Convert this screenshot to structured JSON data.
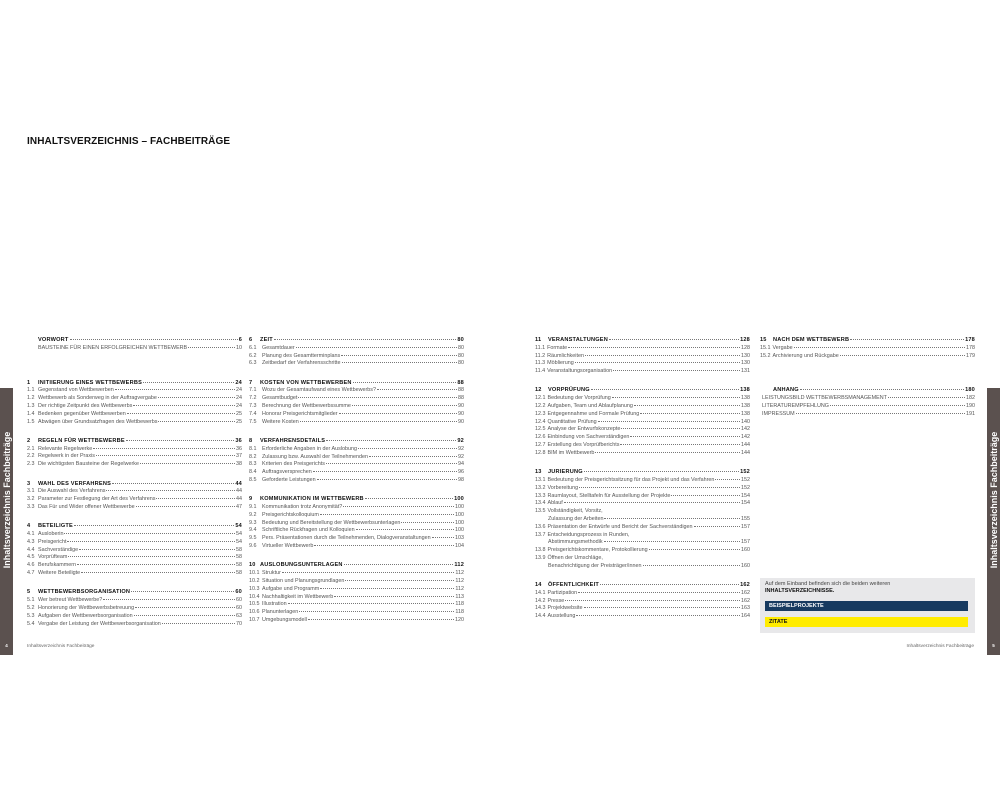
{
  "title": "INHALTSVERZEICHNIS – FACHBEITRÄGE",
  "side_tab_label": "Inhaltsverzeichnis Fachbeiträge",
  "footer_label": "Inhaltsverzeichnis Fachbeiträge",
  "page_numbers": {
    "left": "4",
    "right": "5"
  },
  "colors": {
    "tab": "#5b514f",
    "navy": "#173a60",
    "yellow": "#ffec00",
    "box": "#e8e8ea"
  },
  "columns": [
    [
      {
        "head": {
          "num": "",
          "title": "VORWORT",
          "page": "6"
        },
        "items": [
          {
            "num": "",
            "title": "BAUSTEINE FÜR EINEN ERFOLGREICHEN WETTBEWERB",
            "page": "10"
          }
        ]
      },
      {
        "head": {
          "num": "1",
          "title": "INITIIERUNG EINES WETTBEWERBS",
          "page": "24"
        },
        "items": [
          {
            "num": "1.1",
            "title": "Gegenstand von Wettbewerben",
            "page": "24"
          },
          {
            "num": "1.2",
            "title": "Wettbewerb als Sonderweg in der Auftragvergabe",
            "page": "24"
          },
          {
            "num": "1.3",
            "title": "Der richtige Zeitpunkt des Wettbewerbs",
            "page": "24"
          },
          {
            "num": "1.4",
            "title": "Bedenken gegenüber Wettbewerben",
            "page": "25"
          },
          {
            "num": "1.5",
            "title": "Abwägen über Grundsatzfragen des Wettbewerbs",
            "page": "25"
          }
        ]
      },
      {
        "head": {
          "num": "2",
          "title": "REGELN FÜR WETTBEWERBE",
          "page": "36"
        },
        "items": [
          {
            "num": "2.1",
            "title": "Relevante Regelwerke",
            "page": "36"
          },
          {
            "num": "2.2",
            "title": "Regelwerk in der Praxis",
            "page": "37"
          },
          {
            "num": "2.3",
            "title": "Die wichtigsten Bausteine der Regelwerke",
            "page": "38"
          }
        ]
      },
      {
        "head": {
          "num": "3",
          "title": "WAHL DES VERFAHRENS",
          "page": "44"
        },
        "items": [
          {
            "num": "3.1",
            "title": "Die Auswahl des Verfahrens",
            "page": "44"
          },
          {
            "num": "3.2",
            "title": "Parameter zur Festlegung der Art des Verfahrens",
            "page": "44"
          },
          {
            "num": "3.3",
            "title": "Das Für und Wider offener Wettbewerbe",
            "page": "47"
          }
        ]
      },
      {
        "head": {
          "num": "4",
          "title": "BETEILIGTE",
          "page": "54"
        },
        "items": [
          {
            "num": "4.1",
            "title": "Ausloberin",
            "page": "54"
          },
          {
            "num": "4.3",
            "title": "Preisgericht",
            "page": "54"
          },
          {
            "num": "4.4",
            "title": "Sachverständige",
            "page": "58"
          },
          {
            "num": "4.5",
            "title": "Vorprüfteam",
            "page": "58"
          },
          {
            "num": "4.6",
            "title": "Berufskammern",
            "page": "58"
          },
          {
            "num": "4.7",
            "title": "Weitere Beteiligte",
            "page": "58"
          }
        ]
      },
      {
        "head": {
          "num": "5",
          "title": "WETTBEWERBSORGANISATION",
          "page": "60"
        },
        "items": [
          {
            "num": "5.1",
            "title": "Wer betreut Wettbewerbe?",
            "page": "60"
          },
          {
            "num": "5.2",
            "title": "Honorierung der Wettbewerbsbetreuung",
            "page": "60"
          },
          {
            "num": "5.3",
            "title": "Aufgaben der Wettbewerbsorganisation",
            "page": "63"
          },
          {
            "num": "5.4",
            "title": "Vergabe der Leistung der Wettbewerbsorganisation",
            "page": "70"
          }
        ]
      }
    ],
    [
      {
        "head": {
          "num": "6",
          "title": "ZEIT",
          "page": "80"
        },
        "items": [
          {
            "num": "6.1",
            "title": "Gesamtdauer",
            "page": "80"
          },
          {
            "num": "6.2",
            "title": "Planung des Gesamtterminplans",
            "page": "80"
          },
          {
            "num": "6.3",
            "title": "Zeitbedarf der Verfahrensschritte",
            "page": "80"
          }
        ]
      },
      {
        "head": {
          "num": "7",
          "title": "KOSTEN VON WETTBEWERBEN",
          "page": "88"
        },
        "items": [
          {
            "num": "7.1",
            "title": "Wozu der Gesamtaufwand eines Wettbewerbs?",
            "page": "88"
          },
          {
            "num": "7.2",
            "title": "Gesamtbudget",
            "page": "88"
          },
          {
            "num": "7.3",
            "title": "Berechnung der Wettbewerbssumme",
            "page": "90"
          },
          {
            "num": "7.4",
            "title": "Honorar Preisgerichtsmitglieder",
            "page": "90"
          },
          {
            "num": "7.5",
            "title": "Weitere Kosten",
            "page": "90"
          }
        ]
      },
      {
        "head": {
          "num": "8",
          "title": "VERFAHRENSDETAILS",
          "page": "92"
        },
        "items": [
          {
            "num": "8.1",
            "title": "Erforderliche Angaben in der Auslobung",
            "page": "92"
          },
          {
            "num": "8.2",
            "title": "Zulassung bzw. Auswahl der Teilnehmenden",
            "page": "92"
          },
          {
            "num": "8.3",
            "title": "Kriterien des Preisgerichts",
            "page": "94"
          },
          {
            "num": "8.4",
            "title": "Auftragsversprechen",
            "page": "96"
          },
          {
            "num": "8.5",
            "title": "Geforderte Leistungen",
            "page": "98"
          }
        ]
      },
      {
        "head": {
          "num": "9",
          "title": "KOMMUNIKATION IM WETTBEWERB",
          "page": "100"
        },
        "items": [
          {
            "num": "9.1",
            "title": "Kommunikation trotz Anonymität?",
            "page": "100"
          },
          {
            "num": "9.2",
            "title": "Preisgerichtskolloquium",
            "page": "100"
          },
          {
            "num": "9.3",
            "title": "Bedeutung und Bereitstellung der Wettbewerbsunterlagen",
            "page": "100"
          },
          {
            "num": "9.4",
            "title": "Schriftliche Rückfragen und Kolloquien",
            "page": "100"
          },
          {
            "num": "9.5",
            "title": "Pers. Präsentationen durch die Teilnehmenden, Dialogveranstaltungen",
            "page": "103"
          },
          {
            "num": "9.6",
            "title": "Virtueller Wettbewerb",
            "page": "104"
          }
        ]
      },
      {
        "head": {
          "num": "10",
          "title": "AUSLOBUNGSUNTERLAGEN",
          "page": "112"
        },
        "items": [
          {
            "num": "10.1",
            "title": "Struktur",
            "page": "112"
          },
          {
            "num": "10.2",
            "title": "Situation und Planungsgrundlagen",
            "page": "112"
          },
          {
            "num": "10.3",
            "title": "Aufgabe und Programm",
            "page": "112"
          },
          {
            "num": "10.4",
            "title": "Nachhaltigkeit im Wettbewerb",
            "page": "113"
          },
          {
            "num": "10.5",
            "title": "Illustration",
            "page": "118"
          },
          {
            "num": "10.6",
            "title": "Planunterlagen",
            "page": "118"
          },
          {
            "num": "10.7",
            "title": "Umgebungsmodell",
            "page": "120"
          }
        ]
      }
    ],
    [
      {
        "head": {
          "num": "11",
          "title": "VERANSTALTUNGEN",
          "page": "128"
        },
        "items": [
          {
            "num": "11.1",
            "title": "Formate",
            "page": "128"
          },
          {
            "num": "11.2",
            "title": "Räumlichkeiten",
            "page": "130"
          },
          {
            "num": "11.3",
            "title": "Möblierung",
            "page": "130"
          },
          {
            "num": "11.4",
            "title": "Veranstaltungsorganisation",
            "page": "131"
          }
        ]
      },
      {
        "head": {
          "num": "12",
          "title": "VORPRÜFUNG",
          "page": "138"
        },
        "items": [
          {
            "num": "12.1",
            "title": "Bedeutung der Vorprüfung",
            "page": "138"
          },
          {
            "num": "12.2",
            "title": "Aufgaben, Team und Ablaufplanung",
            "page": "138"
          },
          {
            "num": "12.3",
            "title": "Entgegennahme und Formale Prüfung",
            "page": "138"
          },
          {
            "num": "12.4",
            "title": "Quantitative Prüfung",
            "page": "140"
          },
          {
            "num": "12.5",
            "title": "Analyse der Entwurfskonzepte",
            "page": "142"
          },
          {
            "num": "12.6",
            "title": "Einbindung von Sachverständigen",
            "page": "142"
          },
          {
            "num": "12.7",
            "title": "Erstellung des Vorprüfberichts",
            "page": "144"
          },
          {
            "num": "12.8",
            "title": "BIM im Wettbewerb",
            "page": "144"
          }
        ]
      },
      {
        "head": {
          "num": "13",
          "title": "JURIERUNG",
          "page": "152"
        },
        "items": [
          {
            "num": "13.1",
            "title": "Bedeutung der Preisgerichtssitzung für das Projekt und das Verfahren",
            "page": "152"
          },
          {
            "num": "13.2",
            "title": "Vorbereitung",
            "page": "152"
          },
          {
            "num": "13.3",
            "title": "Raumlayout, Stelltafeln für Ausstellung der Projekte",
            "page": "154"
          },
          {
            "num": "13.4",
            "title": "Ablauf",
            "page": "154"
          },
          {
            "num": "13.5",
            "title": "Vollständigkeit, Vorsitz,",
            "title2": "Zulassung der Arbeiten",
            "page": "155"
          },
          {
            "num": "13.6",
            "title": "Präsentation der Entwürfe und Bericht der Sachverständigen",
            "page": "157"
          },
          {
            "num": "13.7",
            "title": "Entscheidungsprozess in Runden,",
            "title2": "Abstimmungsmethodik",
            "page": "157"
          },
          {
            "num": "13.8",
            "title": "Preisgerichtskommentare, Protokollierung",
            "page": "160"
          },
          {
            "num": "13.9",
            "title": "Öffnen der Umschläge,",
            "title2": "Benachrichtigung der Preisträger/innen",
            "page": "160"
          }
        ]
      },
      {
        "head": {
          "num": "14",
          "title": "ÖFFENTLICHKEIT",
          "page": "162"
        },
        "items": [
          {
            "num": "14.1",
            "title": "Partizipation",
            "page": "162"
          },
          {
            "num": "14.2",
            "title": "Presse",
            "page": "162"
          },
          {
            "num": "14.3",
            "title": "Projektwebsite",
            "page": "163"
          },
          {
            "num": "14.4",
            "title": "Ausstellung",
            "page": "164"
          }
        ]
      }
    ],
    [
      {
        "head": {
          "num": "15",
          "title": "NACH DEM WETTBEWERB",
          "page": "178"
        },
        "items": [
          {
            "num": "15.1",
            "title": "Vergabe",
            "page": "178"
          },
          {
            "num": "15.2",
            "title": "Archivierung und Rückgabe",
            "page": "179"
          }
        ]
      },
      {
        "head": {
          "num": "",
          "title": "ANHANG",
          "page": "180"
        },
        "items": [
          {
            "num": "",
            "title": "LEISTUNGSBILD WETTBEWERBSMANAGEMENT",
            "page": "182"
          },
          {
            "num": "",
            "title": "LITERATUREMPFEHLUNG",
            "page": "190"
          },
          {
            "num": "",
            "title": "IMPRESSUM",
            "page": "191"
          }
        ]
      }
    ]
  ],
  "info_box": {
    "text": "Auf dem Einband befinden sich die beiden weiteren",
    "bold_text": "INHALTSVERZEICHNISSE.",
    "links": [
      "BEISPIELPROJEKTE",
      "ZITATE"
    ]
  }
}
